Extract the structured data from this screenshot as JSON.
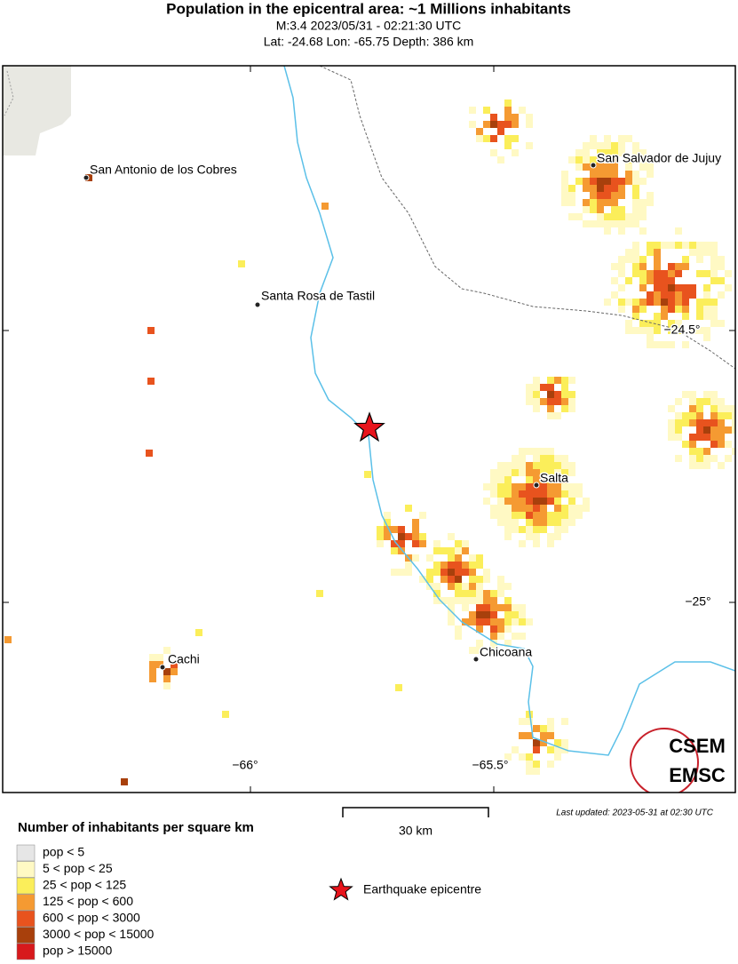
{
  "header": {
    "title": "Population in the epicentral area: ~1 Millions inhabitants",
    "subtitle": "M:3.4 2023/05/31 - 02:21:30 UTC",
    "location": "Lat: -24.68 Lon: -65.75 Depth: 386 km"
  },
  "map": {
    "cities": [
      "San Antonio de los Cobres",
      "San Salvador de Jujuy",
      "Santa Rosa de Tastil",
      "Salta",
      "Cachi",
      "Chicoana"
    ],
    "axis_labels": [
      "−24.5°",
      "−25°",
      "−66°",
      "−65.5°"
    ],
    "logo": [
      "CSEM",
      "EMSC"
    ]
  },
  "scale_bar": "30 km",
  "last_updated": "Last updated: 2023-05-31 at 02:30 UTC",
  "legend": {
    "title": "Number of inhabitants per square km",
    "items": [
      {
        "label": "pop < 5",
        "color": "#e6e6e6"
      },
      {
        "label": "5 < pop < 25",
        "color": "#fff9c4"
      },
      {
        "label": "25 < pop < 125",
        "color": "#fbee5a"
      },
      {
        "label": "125 < pop < 600",
        "color": "#f59a32"
      },
      {
        "label": "600 < pop < 3000",
        "color": "#e8531e"
      },
      {
        "label": "3000 < pop < 15000",
        "color": "#a8400c"
      },
      {
        "label": "pop > 15000",
        "color": "#d7191c"
      }
    ],
    "epicentre": "Earthquake epicentre"
  }
}
